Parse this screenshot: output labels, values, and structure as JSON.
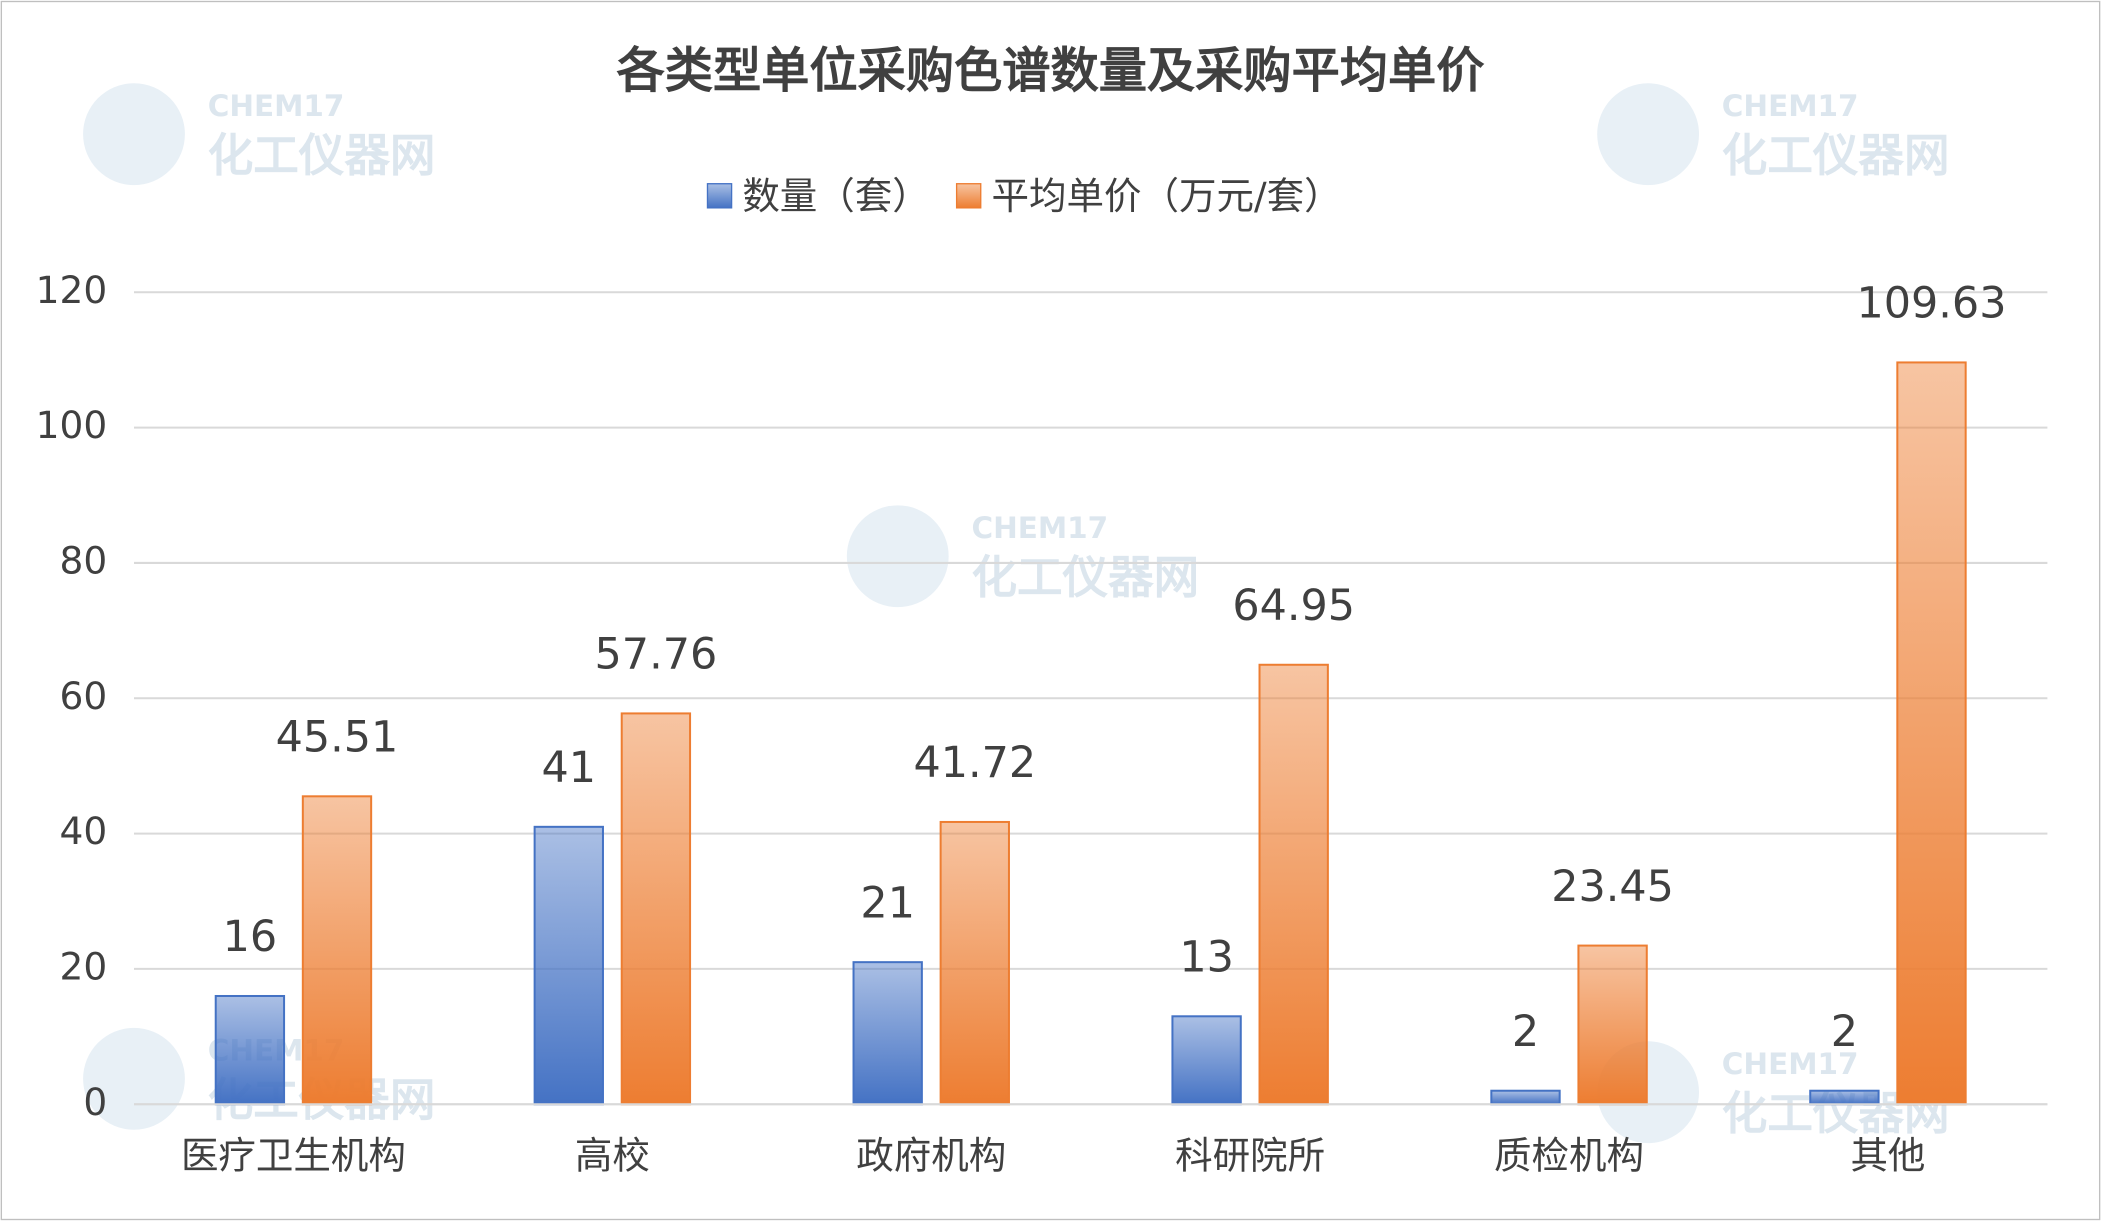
{
  "chart_data": {
    "type": "bar",
    "title": "各类型单位采购色谱数量及采购平均单价",
    "categories": [
      "医疗卫生机构",
      "高校",
      "政府机构",
      "科研院所",
      "质检机构",
      "其他"
    ],
    "series": [
      {
        "name": "数量（套）",
        "color": "#4472c4",
        "values": [
          16,
          41,
          21,
          13,
          2,
          2
        ]
      },
      {
        "name": "平均单价（万元/套）",
        "color": "#ed7d31",
        "values": [
          45.51,
          57.76,
          41.72,
          64.95,
          23.45,
          109.63
        ]
      }
    ],
    "ylim": [
      0,
      120
    ],
    "yticks": [
      0,
      20,
      40,
      60,
      80,
      100,
      120
    ],
    "grid": true,
    "legend": "top",
    "watermark": {
      "brand": "CHEM17",
      "name": "化工仪器网"
    }
  }
}
